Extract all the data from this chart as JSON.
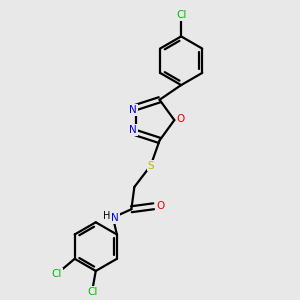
{
  "background_color": "#e8e8e8",
  "bond_color": "#000000",
  "N_color": "#0000ee",
  "O_color": "#ee0000",
  "S_color": "#bbbb00",
  "Cl_color": "#00bb00",
  "line_width": 1.6,
  "figsize": [
    3.0,
    3.0
  ],
  "dpi": 100,
  "xlim": [
    0,
    1
  ],
  "ylim": [
    0,
    1
  ]
}
